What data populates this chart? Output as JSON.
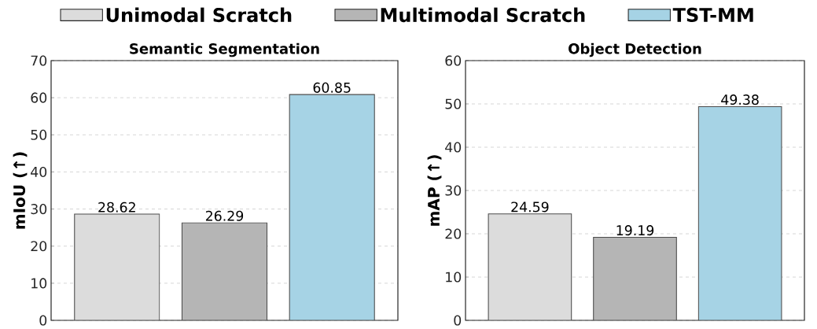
{
  "chart_data": [
    {
      "type": "bar",
      "title": "Semantic Segmentation",
      "ylabel": "mIoU (↑)",
      "categories": [
        null
      ],
      "series": [
        {
          "name": "Unimodal Scratch",
          "color": "#dcdcdc",
          "values": [
            28.62
          ]
        },
        {
          "name": "Multimodal Scratch",
          "color": "#b5b5b5",
          "values": [
            26.29
          ]
        },
        {
          "name": "TST-MM",
          "color": "#a6d3e5",
          "values": [
            60.85
          ]
        }
      ],
      "ylim": [
        0,
        70
      ],
      "yticks": [
        0,
        10,
        20,
        30,
        40,
        50,
        60,
        70
      ],
      "grid": "y",
      "legend": "top",
      "data_labels": true
    },
    {
      "type": "bar",
      "title": "Object Detection",
      "ylabel": "mAP (↑)",
      "categories": [
        null
      ],
      "series": [
        {
          "color": "#dcdcdc",
          "values": [
            24.59
          ]
        },
        {
          "color": "#b5b5b5",
          "values": [
            19.19
          ]
        },
        {
          "color": "#a6d3e5",
          "values": [
            49.38
          ]
        }
      ],
      "ylim": [
        0,
        60
      ],
      "yticks": [
        0,
        10,
        20,
        30,
        40,
        50,
        60
      ],
      "grid": "y",
      "data_labels": true
    }
  ]
}
